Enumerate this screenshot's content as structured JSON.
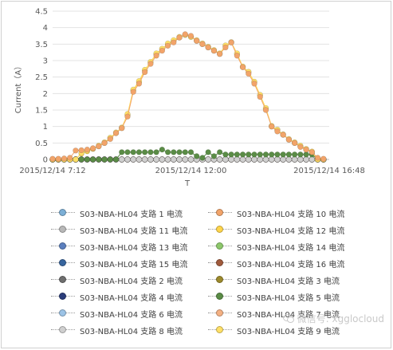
{
  "chart_data": {
    "type": "line",
    "title": "",
    "xlabel": "T",
    "ylabel": "Current（A）",
    "ylim": [
      0,
      4.5
    ],
    "yticks": [
      "0",
      "0.5",
      "1",
      "1.5",
      "2",
      "2.5",
      "3",
      "3.5",
      "4",
      "4.5"
    ],
    "xticks": [
      "2015/12/14 7:12",
      "2015/12/14 12:00",
      "2015/12/14 16:48"
    ],
    "xlim_minutes": [
      432,
      1008
    ],
    "x_minutes": [
      432,
      444,
      456,
      468,
      480,
      492,
      504,
      516,
      528,
      540,
      552,
      564,
      576,
      588,
      600,
      612,
      624,
      636,
      648,
      660,
      672,
      684,
      696,
      708,
      720,
      732,
      744,
      756,
      768,
      780,
      792,
      804,
      816,
      828,
      840,
      852,
      864,
      876,
      888,
      900,
      912,
      924,
      936,
      948,
      960,
      972,
      984,
      996
    ],
    "grid": "horizontal",
    "legend_position": "bottom",
    "series": [
      {
        "name": "S03-NBA-HL04 支路 1 电流",
        "color": "#7cafd6",
        "values": [
          0,
          0,
          0,
          0,
          0,
          0,
          0,
          0,
          0,
          0,
          0,
          0,
          0,
          0,
          0,
          0,
          0,
          0,
          0,
          0,
          0,
          0,
          0,
          0,
          0,
          0,
          0,
          0,
          0,
          0,
          0,
          0,
          0,
          0,
          0,
          0,
          0,
          0,
          0,
          0,
          0,
          0,
          0,
          0,
          0,
          0,
          0,
          0
        ]
      },
      {
        "name": "S03-NBA-HL04 支路 10 电流",
        "color": "#f2a46a",
        "values": [
          0.02,
          0.02,
          0.03,
          0.05,
          0.27,
          0.28,
          0.3,
          0.34,
          0.4,
          0.5,
          0.62,
          0.8,
          0.95,
          1.3,
          2.05,
          2.3,
          2.65,
          2.9,
          3.15,
          3.3,
          3.45,
          3.55,
          3.7,
          3.8,
          3.75,
          3.6,
          3.5,
          3.4,
          3.3,
          3.2,
          3.4,
          3.55,
          3.15,
          2.8,
          2.6,
          2.3,
          1.9,
          1.5,
          1.0,
          0.85,
          0.75,
          0.6,
          0.5,
          0.38,
          0.3,
          0.22,
          0.05,
          0.02
        ]
      },
      {
        "name": "S03-NBA-HL04 支路 11 电流",
        "color": "#b8b8b8",
        "values": [
          0,
          0,
          0,
          0,
          0,
          0,
          0,
          0,
          0,
          0,
          0,
          0,
          0,
          0,
          0,
          0,
          0,
          0,
          0,
          0,
          0,
          0,
          0,
          0,
          0,
          0,
          0,
          0,
          0,
          0,
          0,
          0,
          0,
          0,
          0,
          0,
          0,
          0,
          0,
          0,
          0,
          0,
          0,
          0,
          0,
          0,
          0,
          0
        ]
      },
      {
        "name": "S03-NBA-HL04 支路 12 电流",
        "color": "#ffd54a",
        "values": [
          0.0,
          0.0,
          0.0,
          0.0,
          0.0,
          0.18,
          0.25,
          0.32,
          0.4,
          0.5,
          0.65,
          0.8,
          0.95,
          1.35,
          2.1,
          2.35,
          2.7,
          2.95,
          3.2,
          3.35,
          3.5,
          3.6,
          3.7,
          3.78,
          3.72,
          3.6,
          3.5,
          3.4,
          3.3,
          3.2,
          3.45,
          3.55,
          3.2,
          2.8,
          2.65,
          2.35,
          1.95,
          1.55,
          1.0,
          0.9,
          0.75,
          0.6,
          0.5,
          0.4,
          0.3,
          0.22,
          0.0,
          0.0
        ]
      },
      {
        "name": "S03-NBA-HL04 支路 13 电流",
        "color": "#5b7fbe",
        "values": [
          0,
          0,
          0,
          0,
          0,
          0,
          0,
          0,
          0,
          0,
          0,
          0,
          0,
          0,
          0,
          0,
          0,
          0,
          0,
          0,
          0,
          0,
          0,
          0,
          0,
          0,
          0,
          0,
          0,
          0,
          0,
          0,
          0,
          0,
          0,
          0,
          0,
          0,
          0,
          0,
          0,
          0,
          0,
          0,
          0,
          0,
          0,
          0
        ]
      },
      {
        "name": "S03-NBA-HL04 支路 14 电流",
        "color": "#8dc86b",
        "values": [
          0,
          0,
          0,
          0,
          0,
          0,
          0,
          0,
          0,
          0,
          0,
          0,
          0,
          0,
          0,
          0,
          0,
          0,
          0,
          0,
          0,
          0,
          0,
          0,
          0,
          0,
          0,
          0,
          0,
          0,
          0,
          0,
          0,
          0,
          0,
          0,
          0,
          0,
          0,
          0,
          0,
          0,
          0,
          0,
          0,
          0,
          0,
          0
        ]
      },
      {
        "name": "S03-NBA-HL04 支路 15 电流",
        "color": "#37659e",
        "values": [
          0,
          0,
          0,
          0,
          0,
          0,
          0,
          0,
          0,
          0,
          0,
          0,
          0,
          0,
          0,
          0,
          0,
          0,
          0,
          0,
          0,
          0,
          0,
          0,
          0,
          0,
          0,
          0,
          0,
          0,
          0,
          0,
          0,
          0,
          0,
          0,
          0,
          0,
          0,
          0,
          0,
          0,
          0,
          0,
          0,
          0,
          0,
          0
        ]
      },
      {
        "name": "S03-NBA-HL04 支路 16 电流",
        "color": "#a05a3c",
        "values": [
          0,
          0,
          0,
          0,
          0,
          0,
          0,
          0,
          0,
          0,
          0,
          0,
          0,
          0,
          0,
          0,
          0,
          0,
          0,
          0,
          0,
          0,
          0,
          0,
          0,
          0,
          0,
          0,
          0,
          0,
          0,
          0,
          0,
          0,
          0,
          0,
          0,
          0,
          0,
          0,
          0,
          0,
          0,
          0,
          0,
          0,
          0,
          0
        ]
      },
      {
        "name": "S03-NBA-HL04 支路 2 电流",
        "color": "#6e6e6e",
        "values": [
          0,
          0,
          0,
          0,
          0,
          0,
          0,
          0,
          0,
          0,
          0,
          0,
          0,
          0,
          0,
          0,
          0,
          0,
          0,
          0,
          0,
          0,
          0,
          0,
          0,
          0,
          0,
          0,
          0,
          0,
          0,
          0,
          0,
          0,
          0,
          0,
          0,
          0,
          0,
          0,
          0,
          0,
          0,
          0,
          0,
          0,
          0,
          0
        ]
      },
      {
        "name": "S03-NBA-HL04 支路 3 电流",
        "color": "#9c8a2c",
        "values": [
          0,
          0,
          0,
          0,
          0,
          0,
          0,
          0,
          0,
          0,
          0,
          0,
          0,
          0,
          0,
          0,
          0,
          0,
          0,
          0,
          0,
          0,
          0,
          0,
          0,
          0,
          0,
          0,
          0,
          0,
          0,
          0,
          0,
          0,
          0,
          0,
          0,
          0,
          0,
          0,
          0,
          0,
          0,
          0,
          0,
          0,
          0,
          0
        ]
      },
      {
        "name": "S03-NBA-HL04 支路 4 电流",
        "color": "#2a3d7a",
        "values": [
          0,
          0,
          0,
          0,
          0,
          0,
          0,
          0,
          0,
          0,
          0,
          0,
          0,
          0,
          0,
          0,
          0,
          0,
          0,
          0,
          0,
          0,
          0,
          0,
          0,
          0,
          0,
          0,
          0,
          0,
          0,
          0,
          0,
          0,
          0,
          0,
          0,
          0,
          0,
          0,
          0,
          0,
          0,
          0,
          0,
          0,
          0,
          0
        ]
      },
      {
        "name": "S03-NBA-HL04 支路 5 电流",
        "color": "#5a8c46",
        "values": [
          0,
          0,
          0,
          0,
          0,
          0,
          0,
          0,
          0,
          0,
          0,
          0,
          0.22,
          0.22,
          0.22,
          0.22,
          0.22,
          0.22,
          0.22,
          0.3,
          0.22,
          0.22,
          0.22,
          0.22,
          0.22,
          0.1,
          0.05,
          0.22,
          0.1,
          0.22,
          0.15,
          0.15,
          0.15,
          0.15,
          0.15,
          0.15,
          0.15,
          0.15,
          0.15,
          0.15,
          0.15,
          0.15,
          0.15,
          0.15,
          0.15,
          0.15,
          0,
          0
        ]
      },
      {
        "name": "S03-NBA-HL04 支路 6 电流",
        "color": "#9cc3e6",
        "values": [
          0,
          0,
          0,
          0,
          0,
          0,
          0,
          0,
          0,
          0,
          0,
          0,
          0,
          0,
          0,
          0,
          0,
          0,
          0,
          0,
          0,
          0,
          0,
          0,
          0,
          0,
          0,
          0,
          0,
          0,
          0,
          0,
          0,
          0,
          0,
          0,
          0,
          0,
          0,
          0,
          0,
          0,
          0,
          0,
          0,
          0,
          0,
          0
        ]
      },
      {
        "name": "S03-NBA-HL04 支路 7 电流",
        "color": "#f4b183",
        "values": [
          0,
          0,
          0,
          0,
          0,
          0,
          0,
          0,
          0,
          0,
          0,
          0,
          0,
          0,
          0,
          0,
          0,
          0,
          0,
          0,
          0,
          0,
          0,
          0,
          0,
          0,
          0,
          0,
          0,
          0,
          0,
          0,
          0,
          0,
          0,
          0,
          0,
          0,
          0,
          0,
          0,
          0,
          0,
          0,
          0,
          0,
          0,
          0
        ]
      },
      {
        "name": "S03-NBA-HL04 支路 8 电流",
        "color": "#cfcfcf",
        "values": [
          0,
          0,
          0,
          0,
          0,
          0,
          0,
          0,
          0,
          0,
          0,
          0,
          0,
          0,
          0,
          0,
          0,
          0,
          0,
          0,
          0,
          0,
          0,
          0,
          0,
          0,
          0,
          0,
          0,
          0,
          0,
          0,
          0,
          0,
          0,
          0,
          0,
          0,
          0,
          0,
          0,
          0,
          0,
          0,
          0,
          0,
          0,
          0
        ]
      },
      {
        "name": "S03-NBA-HL04 支路 9 电流",
        "color": "#ffe066",
        "values": [
          0.0,
          0.0,
          0.0,
          0.0,
          0.0,
          0.2,
          0.27,
          0.33,
          0.42,
          0.52,
          0.66,
          0.82,
          0.97,
          1.38,
          2.12,
          2.38,
          2.72,
          2.96,
          3.22,
          3.36,
          3.52,
          3.62,
          3.72,
          3.78,
          3.72,
          3.62,
          3.52,
          3.42,
          3.32,
          3.22,
          3.46,
          3.56,
          3.22,
          2.82,
          2.66,
          2.36,
          1.96,
          1.56,
          1.02,
          0.9,
          0.76,
          0.62,
          0.52,
          0.42,
          0.32,
          0.24,
          0.0,
          0.0
        ]
      }
    ]
  },
  "watermark": {
    "text": "微信号: xgglocloud"
  }
}
